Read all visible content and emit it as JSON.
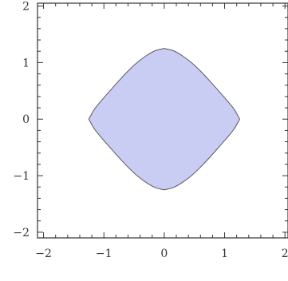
{
  "chart_data": {
    "type": "area",
    "title": "",
    "xlabel": "",
    "ylabel": "",
    "xlim": [
      -2.1,
      2.05
    ],
    "ylim": [
      -2.1,
      2.05
    ],
    "major_ticks": [
      -2,
      -1,
      0,
      1,
      2
    ],
    "x_tick_labels": [
      "−2",
      "−1",
      "0",
      "1",
      "2"
    ],
    "y_tick_labels": [
      "−2",
      "−1",
      "0",
      "1",
      "2"
    ],
    "minor_ticks_per_unit": 5,
    "frame": "box",
    "grid": false,
    "region": {
      "description_source": "shaded closed region centered at origin",
      "vertices": [
        {
          "x": 1.25,
          "y": 0
        },
        {
          "x": 0,
          "y": 1.25
        },
        {
          "x": -1.25,
          "y": 0
        },
        {
          "x": 0,
          "y": -1.25
        }
      ],
      "boundary": [
        [
          1.25,
          0.0
        ],
        [
          1.16,
          0.17
        ],
        [
          1.04,
          0.33
        ],
        [
          0.9,
          0.5
        ],
        [
          0.75,
          0.68
        ],
        [
          0.6,
          0.85
        ],
        [
          0.45,
          1.0
        ],
        [
          0.3,
          1.12
        ],
        [
          0.15,
          1.21
        ],
        [
          0.0,
          1.25
        ],
        [
          -0.15,
          1.21
        ],
        [
          -0.3,
          1.12
        ],
        [
          -0.45,
          1.0
        ],
        [
          -0.6,
          0.85
        ],
        [
          -0.75,
          0.68
        ],
        [
          -0.9,
          0.5
        ],
        [
          -1.04,
          0.33
        ],
        [
          -1.16,
          0.17
        ],
        [
          -1.25,
          0.0
        ],
        [
          -1.16,
          -0.17
        ],
        [
          -1.04,
          -0.33
        ],
        [
          -0.9,
          -0.5
        ],
        [
          -0.75,
          -0.68
        ],
        [
          -0.6,
          -0.85
        ],
        [
          -0.45,
          -1.0
        ],
        [
          -0.3,
          -1.12
        ],
        [
          -0.15,
          -1.21
        ],
        [
          0.0,
          -1.25
        ],
        [
          0.15,
          -1.21
        ],
        [
          0.3,
          -1.12
        ],
        [
          0.45,
          -1.0
        ],
        [
          0.6,
          -0.85
        ],
        [
          0.75,
          -0.68
        ],
        [
          0.9,
          -0.5
        ],
        [
          1.04,
          -0.33
        ],
        [
          1.16,
          -0.17
        ]
      ],
      "fill_color": "#c9ccf3",
      "stroke_color": "#5a5a5a"
    },
    "colors": {
      "frame": "#333333",
      "tick_label": "#333333"
    }
  }
}
